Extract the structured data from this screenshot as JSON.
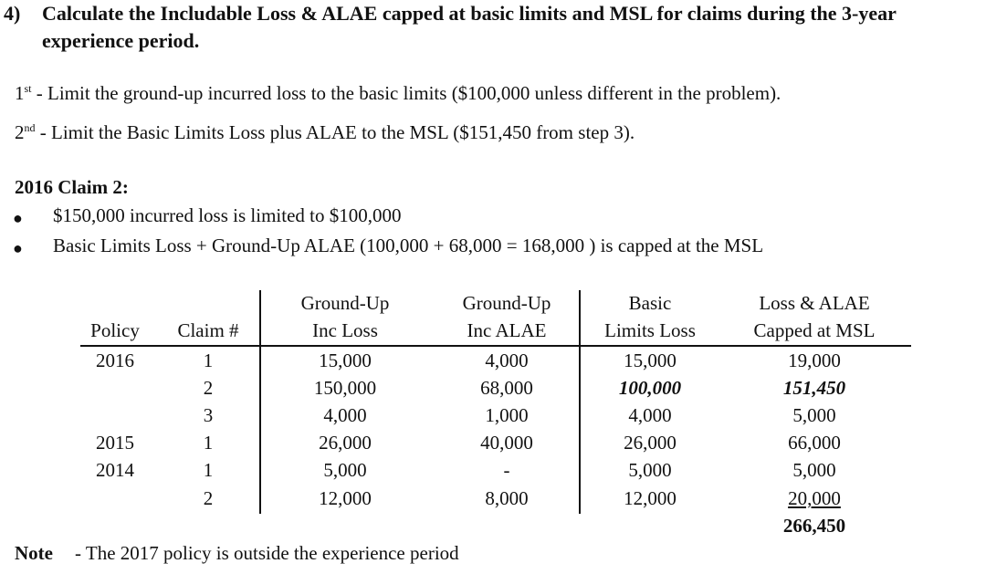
{
  "question": {
    "number": "4)",
    "line1": "Calculate the Includable Loss & ALAE capped at basic limits and MSL for claims during the 3-year",
    "line2": "experience period."
  },
  "steps": [
    {
      "ordinal": "1",
      "suffix": "st",
      "text": " - Limit the ground-up incurred loss to the basic limits ($100,000 unless different in the problem)."
    },
    {
      "ordinal": "2",
      "suffix": "nd",
      "text": " - Limit the Basic Limits Loss plus ALAE to the MSL ($151,450 from step 3)."
    }
  ],
  "claim_section": {
    "heading": "2016 Claim 2:",
    "bullets": [
      "$150,000 incurred loss is limited to $100,000",
      "Basic Limits Loss + Ground-Up ALAE (100,000 + 68,000 = 168,000 ) is capped at the MSL"
    ]
  },
  "table": {
    "headers": {
      "policy": "Policy",
      "claim": "Claim #",
      "gu_loss_1": "Ground-Up",
      "gu_loss_2": "Inc Loss",
      "gu_alae_1": "Ground-Up",
      "gu_alae_2": "Inc ALAE",
      "bl_1": "Basic",
      "bl_2": "Limits Loss",
      "capped_1": "Loss & ALAE",
      "capped_2": "Capped at MSL"
    },
    "rows": [
      {
        "policy": "2016",
        "claim": "1",
        "gu_loss": "15,000",
        "gu_alae": "4,000",
        "bl_loss": "15,000",
        "capped": "19,000"
      },
      {
        "policy": "",
        "claim": "2",
        "gu_loss": "150,000",
        "gu_alae": "68,000",
        "bl_loss": "100,000",
        "capped": "151,450"
      },
      {
        "policy": "",
        "claim": "3",
        "gu_loss": "4,000",
        "gu_alae": "1,000",
        "bl_loss": "4,000",
        "capped": "5,000"
      },
      {
        "policy": "2015",
        "claim": "1",
        "gu_loss": "26,000",
        "gu_alae": "40,000",
        "bl_loss": "26,000",
        "capped": "66,000"
      },
      {
        "policy": "2014",
        "claim": "1",
        "gu_loss": "5,000",
        "gu_alae": "-",
        "bl_loss": "5,000",
        "capped": "5,000"
      },
      {
        "policy": "",
        "claim": "2",
        "gu_loss": "12,000",
        "gu_alae": "8,000",
        "bl_loss": "12,000",
        "capped": "20,000"
      }
    ],
    "total": "266,450"
  },
  "note": {
    "label": "Note",
    "text": "- The 2017 policy is outside the experience period"
  }
}
